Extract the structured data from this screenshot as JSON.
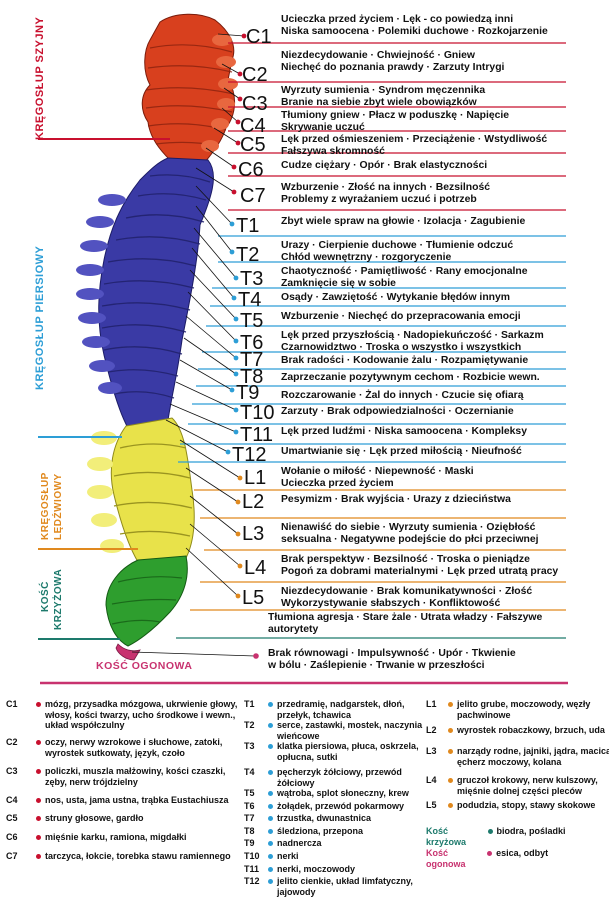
{
  "colors": {
    "cervical": "#d8401e",
    "thoracic": "#3a3aa5",
    "lumbar": "#e8e24a",
    "sacral": "#2e9e2e",
    "coccyx": "#c8326f",
    "line_cervical": "#c8102e",
    "line_thoracic": "#2d9ed6",
    "line_lumbar": "#e0891e",
    "line_sacral": "#1d7a6c",
    "line_coccyx": "#c8326f"
  },
  "regions": {
    "cervical": "KRĘGOSŁUP SZYJNY",
    "thoracic": "KRĘGOSŁUP PIERSIOWY",
    "lumbar": "KRĘGOSŁUP LĘDŹWIOWY",
    "sacral": "KOŚĆ KRZYŻOWA",
    "coccyx": "KOŚĆ OGONOWA"
  },
  "vertebrae": [
    {
      "code": "C1",
      "line1": "Ucieczka przed życiem · Lęk - co powiedzą inni",
      "line2": "Niska samoocena · Polemiki duchowe · Rozkojarzenie"
    },
    {
      "code": "C2",
      "line1": "Niezdecydowanie · Chwiejność · Gniew",
      "line2": "Niechęć do poznania prawdy · Zarzuty  Intrygi"
    },
    {
      "code": "C3",
      "line1": "Wyrzuty sumienia · Syndrom męczennika",
      "line2": "Branie na siebie zbyt wiele obowiązków"
    },
    {
      "code": "C4",
      "line1": "Tłumiony gniew · Płacz w poduszkę · Napięcie",
      "line2": "Skrywanie uczuć"
    },
    {
      "code": "C5",
      "line1": "Lęk przed ośmieszeniem · Przeciążenie · Wstydliwość",
      "line2": "Fałszywa skromność"
    },
    {
      "code": "C6",
      "line1": "Cudze ciężary · Opór · Brak elastyczności",
      "line2": ""
    },
    {
      "code": "C7",
      "line1": "Wzburzenie · Złość na innych · Bezsilność",
      "line2": "Problemy z wyrażaniem uczuć i potrzeb"
    },
    {
      "code": "T1",
      "line1": "Zbyt wiele spraw na głowie · Izolacja · Zagubienie",
      "line2": ""
    },
    {
      "code": "T2",
      "line1": "Urazy · Cierpienie duchowe · Tłumienie odczuć",
      "line2": "Chłód wewnętrzny · rozgoryczenie"
    },
    {
      "code": "T3",
      "line1": "Chaotyczność · Pamiętliwość · Rany emocjonalne",
      "line2": "Zamknięcie się w sobie"
    },
    {
      "code": "T4",
      "line1": "Osądy · Zawziętość · Wytykanie błędów innym",
      "line2": ""
    },
    {
      "code": "T5",
      "line1": "Wzburzenie · Niechęć do przepracowania emocji",
      "line2": ""
    },
    {
      "code": "T6",
      "line1": "Lęk przed przyszłością · Nadopiekuńczość · Sarkazm",
      "line2": "Czarnowidztwo · Troska o wszystko i wszystkich"
    },
    {
      "code": "T7",
      "line1": "Brak radości · Kodowanie żalu · Rozpamiętywanie",
      "line2": ""
    },
    {
      "code": "T8",
      "line1": "Zaprzeczanie pozytywnym cechom · Rozbicie wewn.",
      "line2": ""
    },
    {
      "code": "T9",
      "line1": "Rozczarowanie · Żal do innych · Czucie się ofiarą",
      "line2": ""
    },
    {
      "code": "T10",
      "line1": "Zarzuty · Brak odpowiedzialności · Oczernianie",
      "line2": ""
    },
    {
      "code": "T11",
      "line1": "Lęk przed ludźmi · Niska samoocena · Kompleksy",
      "line2": ""
    },
    {
      "code": "T12",
      "line1": "Umartwianie się · Lęk przed miłością · Nieufność",
      "line2": ""
    },
    {
      "code": "L1",
      "line1": "Wołanie o miłość · Niepewność · Maski",
      "line2": "Ucieczka przed życiem"
    },
    {
      "code": "L2",
      "line1": "Pesymizm · Brak wyjścia · Urazy z dzieciństwa",
      "line2": ""
    },
    {
      "code": "L3",
      "line1": "Nienawiść do siebie · Wyrzuty sumienia · Oziębłość",
      "line2": "seksualna · Negatywne podejście do płci przeciwnej"
    },
    {
      "code": "L4",
      "line1": "Brak perspektyw · Bezsilność · Troska o pieniądze",
      "line2": "Pogoń za dobrami materialnymi · Lęk przed utratą pracy"
    },
    {
      "code": "L5",
      "line1": "Niezdecydowanie · Brak komunikatywności · Złość",
      "line2": "Wykorzystywanie słabszych · Konfliktowość"
    }
  ],
  "sacral_text": {
    "line1": "Tłumiona agresja · Stare żale · Utrata władzy · Fałszywe",
    "line2": "autorytety"
  },
  "coccyx_text": {
    "line1": "Brak równowagi · Impulsywność · Upór · Tkwienie",
    "line2": "w bólu · Zaślepienie · Trwanie w przeszłości"
  },
  "legend": {
    "col1": [
      {
        "code": "C1",
        "text": "mózg, przysadka mózgowa, ukrwienie głowy, włosy, kości twarzy, ucho środkowe i wewn., układ współczulny"
      },
      {
        "code": "C2",
        "text": "oczy, nerwy wzrokowe i słuchowe, zatoki, wyrostek sutkowaty, język, czoło"
      },
      {
        "code": "C3",
        "text": "policzki, muszla małżowiny, kości czaszki, zęby, nerw trójdzielny"
      },
      {
        "code": "C4",
        "text": "nos, usta, jama ustna, trąbka Eustachiusza"
      },
      {
        "code": "C5",
        "text": "struny głosowe, gardło"
      },
      {
        "code": "C6",
        "text": "mięśnie karku, ramiona, migdałki"
      },
      {
        "code": "C7",
        "text": "tarczyca, łokcie, torebka stawu ramiennego"
      }
    ],
    "col2": [
      {
        "code": "T1",
        "text": "przedramię, nadgarstek, dłoń, przełyk, tchawica"
      },
      {
        "code": "T2",
        "text": "serce, zastawki, mostek, naczynia wieńcowe"
      },
      {
        "code": "T3",
        "text": "klatka piersiowa, płuca, oskrzela, opłucna, sutki"
      },
      {
        "code": "T4",
        "text": "pęcherzyk żółciowy, przewód żółciowy"
      },
      {
        "code": "T5",
        "text": "wątroba, splot słoneczny, krew"
      },
      {
        "code": "T6",
        "text": "żołądek, przewód pokarmowy"
      },
      {
        "code": "T7",
        "text": "trzustka, dwunastnica"
      },
      {
        "code": "T8",
        "text": "śledziona, przepona"
      },
      {
        "code": "T9",
        "text": "nadnercza"
      },
      {
        "code": "T10",
        "text": "nerki"
      },
      {
        "code": "T11",
        "text": "nerki, moczowody"
      },
      {
        "code": "T12",
        "text": "jelito cienkie, układ limfatyczny, jajowody"
      }
    ],
    "col3": [
      {
        "code": "L1",
        "text": "jelito grube, moczowody, węzły pachwinowe"
      },
      {
        "code": "L2",
        "text": "wyrostek robaczkowy, brzuch, uda"
      },
      {
        "code": "L3",
        "text": "narządy rodne, jajniki, jądra, macica, ęcherz moczowy, kolana"
      },
      {
        "code": "L4",
        "text": "gruczoł krokowy, nerw kulszowy, mięśnie dolnej części pleców"
      },
      {
        "code": "L5",
        "text": "podudzia, stopy, stawy skokowe"
      },
      {
        "code": "Kość krzyżowa",
        "text": "biodra, pośladki"
      },
      {
        "code": "Kość ogonowa",
        "text": "esica, odbyt"
      }
    ]
  }
}
